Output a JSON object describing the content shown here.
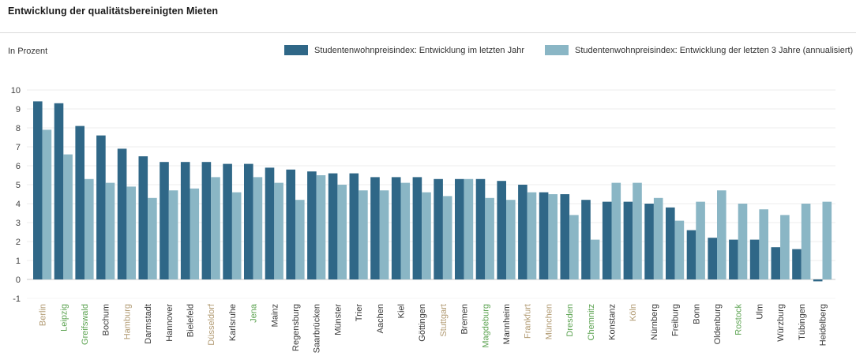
{
  "header": {
    "title": "Entwicklung der qualitätsbereinigten Mieten"
  },
  "legend": {
    "unit_label": "In Prozent",
    "items": [
      {
        "label": "Studentenwohnpreisindex: Entwicklung im letzten Jahr",
        "color": "#2f6787"
      },
      {
        "label": "Studentenwohnpreisindex: Entwicklung der letzten 3 Jahre (annualisiert)",
        "color": "#8ab6c5"
      }
    ]
  },
  "chart_data": {
    "type": "bar",
    "title": "Entwicklung der qualitätsbereinigten Mieten",
    "xlabel": "",
    "ylabel": "In Prozent",
    "ylim": [
      -1,
      10
    ],
    "yticks": [
      10,
      9,
      8,
      7,
      6,
      5,
      4,
      3,
      2,
      1,
      0,
      -1
    ],
    "grid": true,
    "legend_position": "top",
    "categories": [
      "Berlin",
      "Leipzig",
      "Greifswald",
      "Bochum",
      "Hamburg",
      "Darmstadt",
      "Hannover",
      "Bielefeld",
      "Düsseldorf",
      "Karlsruhe",
      "Jena",
      "Mainz",
      "Regensburg",
      "Saarbrücken",
      "Münster",
      "Trier",
      "Aachen",
      "Kiel",
      "Göttingen",
      "Stuttgart",
      "Bremen",
      "Magdeburg",
      "Mannheim",
      "Frankfurt",
      "München",
      "Dresden",
      "Chemnitz",
      "Konstanz",
      "Köln",
      "Nürnberg",
      "Freiburg",
      "Bonn",
      "Oldenburg",
      "Rostock",
      "Ulm",
      "Würzburg",
      "Tübingen",
      "Heidelberg"
    ],
    "category_styles": [
      "accent",
      "east",
      "east",
      "default",
      "accent",
      "default",
      "default",
      "default",
      "accent",
      "default",
      "east",
      "default",
      "default",
      "default",
      "default",
      "default",
      "default",
      "default",
      "default",
      "accent",
      "default",
      "east",
      "default",
      "accent",
      "accent",
      "east",
      "east",
      "default",
      "accent",
      "default",
      "default",
      "default",
      "default",
      "east",
      "default",
      "default",
      "default",
      "default"
    ],
    "category_colors": {
      "accent": "#b19a72",
      "east": "#5ca351",
      "default": "#3a3a3a"
    },
    "series": [
      {
        "name": "Studentenwohnpreisindex: Entwicklung im letzten Jahr",
        "color": "#2f6787",
        "values": [
          9.4,
          9.3,
          8.1,
          7.6,
          6.9,
          6.5,
          6.2,
          6.2,
          6.2,
          6.1,
          6.1,
          5.9,
          5.8,
          5.7,
          5.6,
          5.6,
          5.4,
          5.4,
          5.4,
          5.3,
          5.3,
          5.3,
          5.2,
          5.0,
          4.6,
          4.5,
          4.2,
          4.1,
          4.1,
          4.0,
          3.8,
          2.6,
          2.2,
          2.1,
          2.1,
          1.7,
          1.6,
          -0.1
        ]
      },
      {
        "name": "Studentenwohnpreisindex: Entwicklung der letzten 3 Jahre (annualisiert)",
        "color": "#8ab6c5",
        "values": [
          7.9,
          6.6,
          5.3,
          5.1,
          4.9,
          4.3,
          4.7,
          4.8,
          5.4,
          4.6,
          5.4,
          5.1,
          4.2,
          5.5,
          5.0,
          4.7,
          4.7,
          5.1,
          4.6,
          4.4,
          5.3,
          4.3,
          4.2,
          4.6,
          4.5,
          3.4,
          2.1,
          5.1,
          5.1,
          4.3,
          3.1,
          4.1,
          4.7,
          4.0,
          3.7,
          3.4,
          4.0,
          4.1
        ]
      }
    ]
  }
}
